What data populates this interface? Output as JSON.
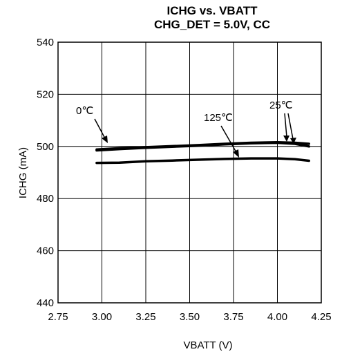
{
  "chart_data": {
    "type": "line",
    "title": "ICHG vs. VBATT",
    "subtitle": "CHG_DET = 5.0V, CC",
    "xlabel": "VBATT (V)",
    "ylabel": "ICHG (mA)",
    "xlim": [
      2.75,
      4.25
    ],
    "ylim": [
      440,
      540
    ],
    "xticks": [
      "2.75",
      "3.00",
      "3.25",
      "3.50",
      "3.75",
      "4.00",
      "4.25"
    ],
    "yticks": [
      "440",
      "460",
      "480",
      "500",
      "520",
      "540"
    ],
    "grid": true,
    "series": [
      {
        "name": "0℃",
        "x": [
          2.97,
          3.1,
          3.25,
          3.4,
          3.55,
          3.7,
          3.85,
          4.0,
          4.1,
          4.18
        ],
        "y": [
          498.8,
          499.3,
          499.7,
          500.1,
          500.5,
          501.0,
          501.4,
          501.6,
          501.4,
          501.0
        ]
      },
      {
        "name": "25℃",
        "x": [
          2.97,
          3.1,
          3.25,
          3.4,
          3.55,
          3.7,
          3.85,
          4.0,
          4.1,
          4.18
        ],
        "y": [
          498.5,
          499.0,
          499.5,
          499.9,
          500.3,
          500.8,
          501.2,
          501.4,
          501.0,
          500.0
        ]
      },
      {
        "name": "125℃",
        "x": [
          2.97,
          3.1,
          3.25,
          3.4,
          3.55,
          3.7,
          3.85,
          4.0,
          4.1,
          4.18
        ],
        "y": [
          493.7,
          493.8,
          494.3,
          494.6,
          494.9,
          495.2,
          495.4,
          495.4,
          495.1,
          494.5
        ]
      }
    ],
    "annotations": [
      "0℃",
      "125℃",
      "25℃"
    ]
  }
}
